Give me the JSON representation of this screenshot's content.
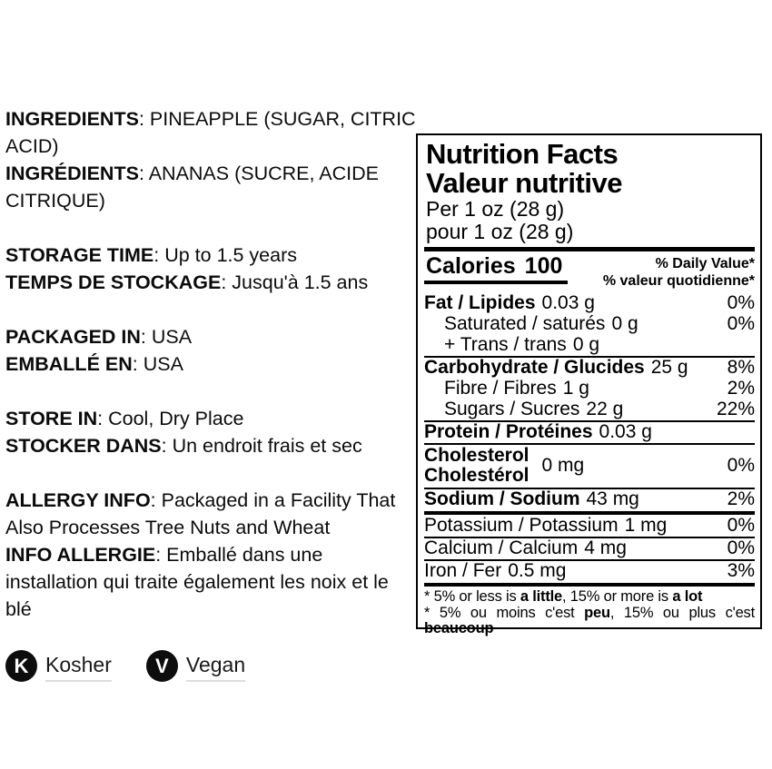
{
  "info_blocks": [
    {
      "lines": [
        {
          "label": "INGREDIENTS",
          "text": ": PINEAPPLE (SUGAR, CITRIC ACID)"
        },
        {
          "label": "INGRÉDIENTS",
          "text": ": ANANAS (SUCRE, ACIDE CITRIQUE)"
        }
      ]
    },
    {
      "lines": [
        {
          "label": "STORAGE TIME",
          "text": ": Up to 1.5 years"
        },
        {
          "label": "TEMPS DE STOCKAGE",
          "text": ": Jusqu'à 1.5 ans"
        }
      ]
    },
    {
      "lines": [
        {
          "label": "PACKAGED IN",
          "text": ": USA"
        },
        {
          "label": "EMBALLÉ EN",
          "text": ": USA"
        }
      ]
    },
    {
      "lines": [
        {
          "label": "STORE IN",
          "text": ": Cool, Dry Place"
        },
        {
          "label": "STOCKER DANS",
          "text": ": Un endroit frais et sec"
        }
      ]
    },
    {
      "lines": [
        {
          "label": "ALLERGY INFO",
          "text": ": Packaged in a Facility That Also Processes Tree Nuts and Wheat"
        },
        {
          "label": "INFO ALLERGIE",
          "text": ": Emballé dans une installation qui traite également les noix et le blé"
        }
      ]
    }
  ],
  "badges": [
    {
      "icon_letter": "K",
      "label": "Kosher"
    },
    {
      "icon_letter": "V",
      "label": "Vegan"
    }
  ],
  "badge_colors": {
    "circle": "#0d0d0d",
    "letter": "#ffffff",
    "underline": "#dcdcdc"
  },
  "nutrition": {
    "title_en": "Nutrition Facts",
    "title_fr": "Valeur nutritive",
    "serving_en": "Per 1 oz (28 g)",
    "serving_fr": "pour 1 oz (28 g)",
    "calories_label": "Calories",
    "calories_value": "100",
    "dv_en": "% Daily Value*",
    "dv_fr": "% valeur quotidienne*",
    "rows": [
      {
        "name": "Fat / Lipides",
        "amount": "0.03 g",
        "percent": "0%"
      },
      {
        "name": "Saturated / saturés",
        "amount": "0 g",
        "percent": "0%"
      },
      {
        "name": "+ Trans / trans",
        "amount": "0 g",
        "percent": ""
      },
      {
        "name": "Carbohydrate / Glucides",
        "amount": "25 g",
        "percent": "8%"
      },
      {
        "name": "Fibre / Fibres",
        "amount": "1 g",
        "percent": "2%"
      },
      {
        "name": "Sugars / Sucres",
        "amount": "22 g",
        "percent": "22%"
      },
      {
        "name": "Protein / Protéines",
        "amount": "0.03 g",
        "percent": ""
      },
      {
        "name": "Cholesterol",
        "name_fr": "Cholestérol",
        "amount": "0 mg",
        "percent": "0%"
      },
      {
        "name": "Sodium / Sodium",
        "amount": "43 mg",
        "percent": "2%"
      },
      {
        "name": "Potassium / Potassium",
        "amount": "1 mg",
        "percent": "0%"
      },
      {
        "name": "Calcium / Calcium",
        "amount": "4 mg",
        "percent": "0%"
      },
      {
        "name": "Iron / Fer",
        "amount": "0.5 mg",
        "percent": "3%"
      }
    ],
    "footnote_en": [
      {
        "t": "* 5% or less is "
      },
      {
        "t": "a little"
      },
      {
        "t": ", 15% or more is "
      },
      {
        "t": "a lot"
      }
    ],
    "footnote_fr": [
      {
        "t": "* 5% ou moins c'est "
      },
      {
        "t": "peu"
      },
      {
        "t": ", 15% ou plus c'est "
      },
      {
        "t": "beaucoup"
      }
    ]
  }
}
